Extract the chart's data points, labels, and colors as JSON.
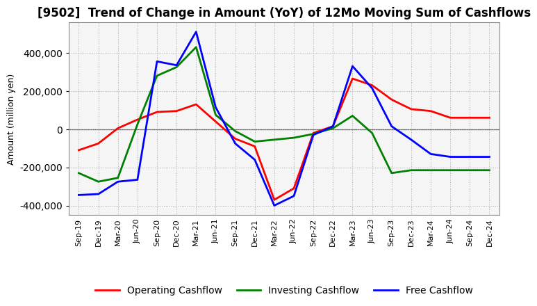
{
  "title": "[9502]  Trend of Change in Amount (YoY) of 12Mo Moving Sum of Cashflows",
  "ylabel": "Amount (million yen)",
  "x_labels": [
    "Sep-19",
    "Dec-19",
    "Mar-20",
    "Jun-20",
    "Sep-20",
    "Dec-20",
    "Mar-21",
    "Jun-21",
    "Sep-21",
    "Dec-21",
    "Mar-22",
    "Jun-22",
    "Sep-22",
    "Dec-22",
    "Mar-23",
    "Jun-23",
    "Sep-23",
    "Dec-23",
    "Mar-24",
    "Jun-24",
    "Sep-24",
    "Dec-24"
  ],
  "operating": [
    -110000,
    -75000,
    5000,
    50000,
    90000,
    95000,
    130000,
    40000,
    -50000,
    -90000,
    -370000,
    -310000,
    -20000,
    15000,
    265000,
    230000,
    155000,
    105000,
    95000,
    60000,
    60000,
    60000
  ],
  "investing": [
    -230000,
    -275000,
    -255000,
    25000,
    280000,
    325000,
    430000,
    75000,
    -10000,
    -65000,
    -55000,
    -45000,
    -25000,
    5000,
    70000,
    -20000,
    -230000,
    -215000,
    -215000,
    -215000,
    -215000,
    -215000
  ],
  "free": [
    -345000,
    -340000,
    -275000,
    -265000,
    355000,
    335000,
    510000,
    115000,
    -75000,
    -160000,
    -400000,
    -350000,
    -30000,
    15000,
    330000,
    215000,
    15000,
    -55000,
    -130000,
    -145000,
    -145000,
    -145000
  ],
  "operating_color": "#ff0000",
  "investing_color": "#008000",
  "free_color": "#0000ff",
  "ylim": [
    -450000,
    560000
  ],
  "yticks": [
    -400000,
    -200000,
    0,
    200000,
    400000
  ],
  "background_color": "#ffffff",
  "plot_bg_color": "#f5f5f5",
  "grid_color": "#aaaaaa",
  "title_fontsize": 12,
  "axis_fontsize": 9,
  "legend_fontsize": 10,
  "line_width": 2.0
}
